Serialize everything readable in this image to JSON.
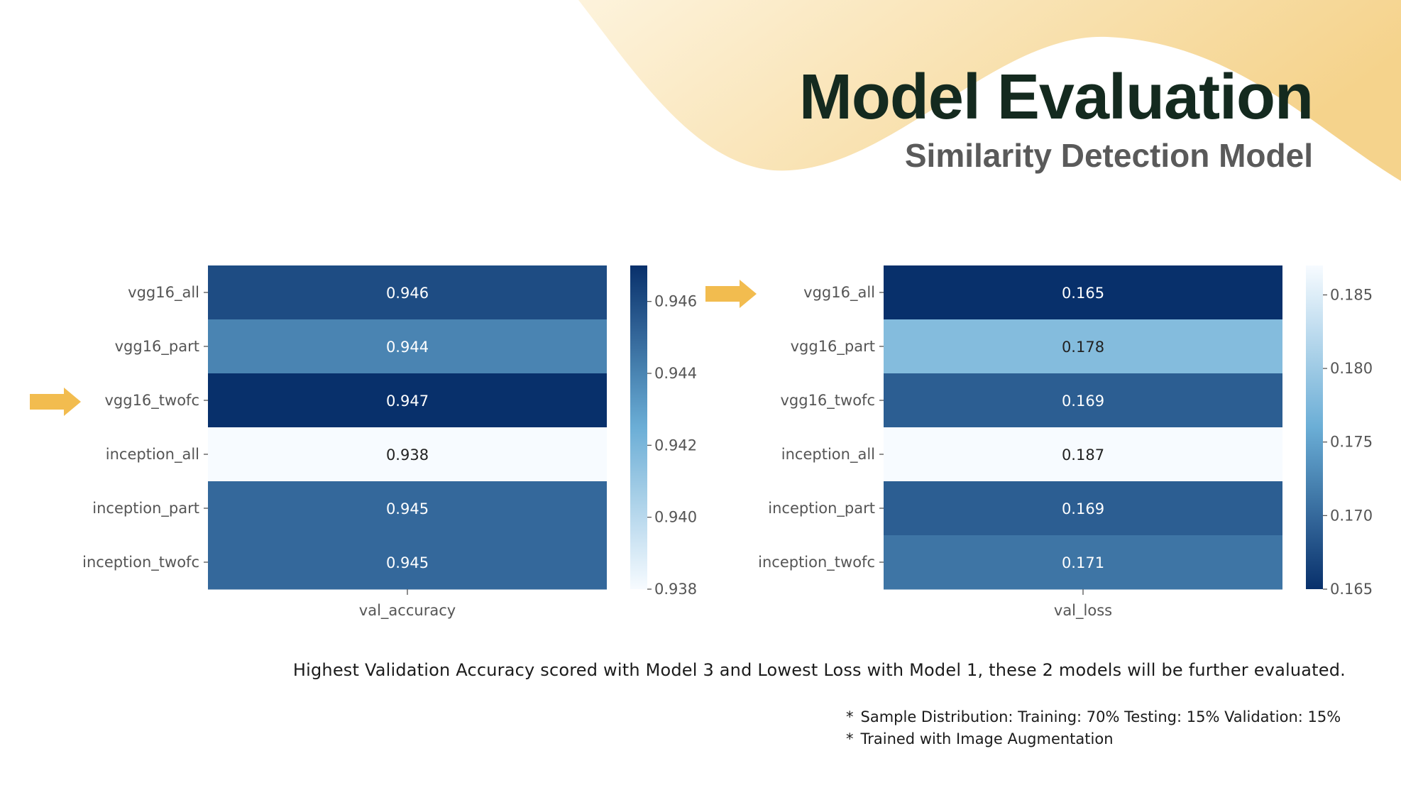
{
  "header": {
    "title": "Model Evaluation",
    "subtitle": "Similarity Detection Model"
  },
  "colors": {
    "wave_light": "#fdf3dc",
    "wave_dark": "#f5d38c",
    "arrow": "#f2bc4f",
    "cmap_low": "#f7fbff",
    "cmap_mid": "#6baed6",
    "cmap_high": "#08306b"
  },
  "chart_data": [
    {
      "type": "heatmap",
      "categories": [
        "vgg16_all",
        "vgg16_part",
        "vgg16_twofc",
        "inception_all",
        "inception_part",
        "inception_twofc"
      ],
      "columns": [
        "val_accuracy"
      ],
      "values": [
        0.946,
        0.944,
        0.947,
        0.938,
        0.945,
        0.945
      ],
      "colorbar": {
        "min": 0.938,
        "max": 0.947,
        "ticks": [
          0.946,
          0.944,
          0.942,
          0.94,
          0.938
        ],
        "reversed": false
      },
      "highlighted_row": "vgg16_twofc",
      "marker": "arrow-right-icon"
    },
    {
      "type": "heatmap",
      "categories": [
        "vgg16_all",
        "vgg16_part",
        "vgg16_twofc",
        "inception_all",
        "inception_part",
        "inception_twofc"
      ],
      "columns": [
        "val_loss"
      ],
      "values": [
        0.165,
        0.178,
        0.169,
        0.187,
        0.169,
        0.171
      ],
      "colorbar": {
        "min": 0.165,
        "max": 0.187,
        "ticks": [
          0.185,
          0.18,
          0.175,
          0.17,
          0.165
        ],
        "reversed": true
      },
      "highlighted_row": "vgg16_all",
      "marker": "arrow-right-icon"
    }
  ],
  "summary": "Highest Validation Accuracy scored with Model 3 and Lowest Loss with Model 1, these 2 models will be further evaluated.",
  "notes": [
    {
      "bullet": "*",
      "text": "Sample Distribution: Training: 70% Testing: 15% Validation: 15%"
    },
    {
      "bullet": "*",
      "text": "Trained with Image Augmentation"
    }
  ]
}
